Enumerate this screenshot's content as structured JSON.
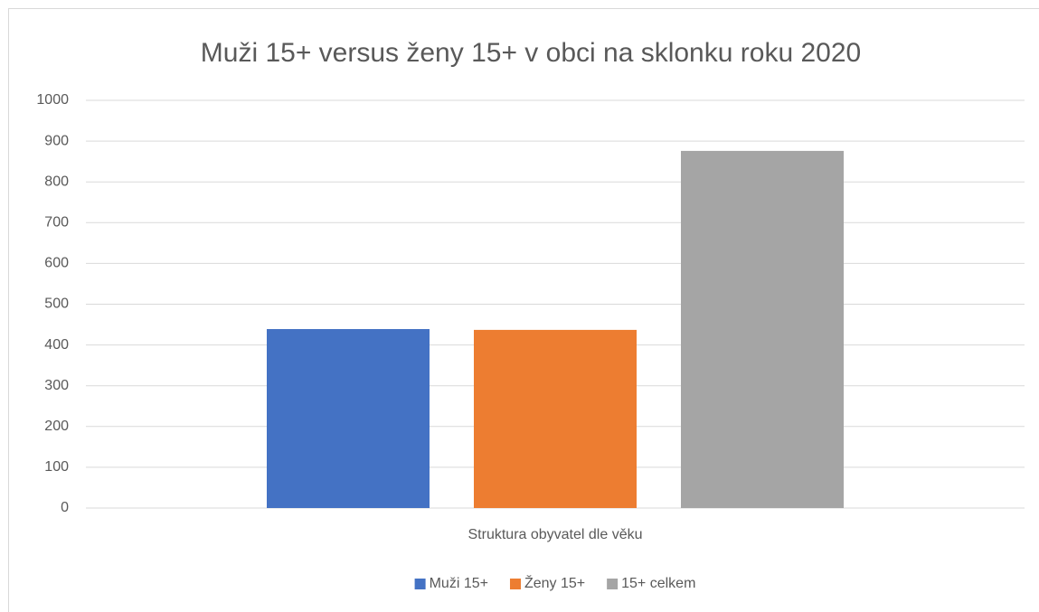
{
  "chart_data": {
    "type": "bar",
    "title": "Muži 15+ versus ženy 15+ v obci na sklonku roku 2020",
    "x_label": "Struktura obyvatel dle věku",
    "categories": [
      null
    ],
    "series": [
      {
        "name": "Muži 15+",
        "color": "#4472c4",
        "values": [
          439
        ]
      },
      {
        "name": "Ženy 15+",
        "color": "#ed7d31",
        "values": [
          437
        ]
      },
      {
        "name": "15+ celkem",
        "color": "#a5a5a5",
        "values": [
          876
        ]
      }
    ],
    "ylim": [
      0,
      1000
    ],
    "yticks": [
      0,
      100,
      200,
      300,
      400,
      500,
      600,
      700,
      800,
      900,
      1000
    ],
    "grid": true,
    "legend": "bottom"
  }
}
